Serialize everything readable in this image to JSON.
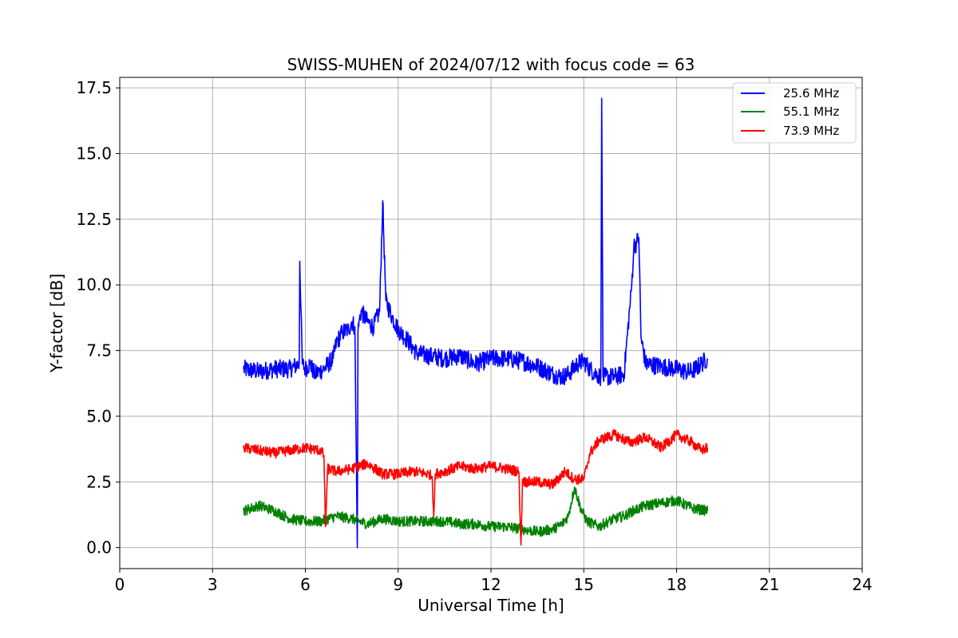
{
  "chart_data": {
    "type": "line",
    "title": "SWISS-MUHEN of 2024/07/12 with focus code = 63",
    "xlabel": "Universal Time [h]",
    "ylabel": "Y-factor [dB]",
    "xlim": [
      0,
      24
    ],
    "ylim": [
      -0.8,
      17.9
    ],
    "xticks": [
      0,
      3,
      6,
      9,
      12,
      15,
      18,
      21,
      24
    ],
    "yticks": [
      0.0,
      2.5,
      5.0,
      7.5,
      10.0,
      12.5,
      15.0,
      17.5
    ],
    "ytick_labels": [
      "0.0",
      "2.5",
      "5.0",
      "7.5",
      "10.0",
      "12.5",
      "15.0",
      "17.5"
    ],
    "grid": true,
    "legend_position": "top-right",
    "series": [
      {
        "name": "25.6 MHz",
        "color": "#0000ff",
        "x": [
          4.0,
          4.5,
          5.0,
          5.5,
          5.8,
          5.82,
          5.9,
          6.0,
          6.15,
          6.3,
          6.6,
          6.9,
          7.0,
          7.2,
          7.4,
          7.5,
          7.6,
          7.68,
          7.7,
          7.75,
          7.8,
          8.0,
          8.2,
          8.4,
          8.5,
          8.6,
          8.8,
          9.0,
          9.3,
          9.6,
          10.0,
          10.5,
          11.0,
          11.5,
          12.0,
          12.5,
          13.0,
          13.5,
          14.0,
          14.3,
          14.5,
          14.8,
          15.0,
          15.2,
          15.4,
          15.55,
          15.58,
          15.62,
          15.7,
          16.0,
          16.3,
          16.55,
          16.62,
          16.7,
          16.78,
          16.85,
          17.0,
          17.5,
          18.0,
          18.3,
          18.5,
          18.8,
          19.0
        ],
        "y": [
          6.8,
          6.7,
          6.8,
          6.8,
          7.0,
          10.9,
          7.0,
          6.8,
          7.0,
          6.6,
          6.8,
          7.2,
          7.8,
          8.2,
          8.3,
          8.6,
          8.4,
          0.0,
          8.2,
          8.7,
          9.0,
          8.6,
          8.4,
          9.0,
          13.2,
          9.4,
          8.8,
          8.3,
          7.9,
          7.4,
          7.3,
          7.2,
          7.3,
          7.0,
          7.2,
          7.2,
          7.1,
          6.9,
          6.6,
          6.5,
          6.6,
          7.0,
          7.1,
          6.8,
          6.6,
          6.5,
          17.1,
          6.5,
          6.5,
          6.5,
          6.6,
          10.0,
          11.5,
          11.6,
          11.8,
          8.0,
          7.0,
          6.9,
          6.8,
          6.7,
          6.7,
          7.0,
          7.2
        ]
      },
      {
        "name": "55.1 MHz",
        "color": "#008000",
        "x": [
          4.0,
          4.5,
          5.0,
          5.5,
          6.0,
          6.5,
          7.0,
          7.5,
          8.0,
          8.5,
          9.0,
          9.5,
          10.0,
          10.5,
          11.0,
          11.5,
          12.0,
          12.5,
          13.0,
          13.5,
          14.0,
          14.3,
          14.5,
          14.7,
          14.9,
          15.1,
          15.3,
          15.5,
          15.8,
          16.0,
          16.3,
          16.6,
          17.0,
          17.5,
          18.0,
          18.5,
          19.0
        ],
        "y": [
          1.4,
          1.6,
          1.4,
          1.1,
          1.0,
          1.0,
          1.2,
          1.1,
          0.9,
          1.1,
          1.0,
          1.0,
          1.0,
          1.0,
          0.9,
          0.9,
          0.8,
          0.8,
          0.7,
          0.6,
          0.7,
          0.9,
          1.2,
          2.3,
          1.5,
          1.0,
          0.9,
          0.8,
          1.0,
          1.1,
          1.2,
          1.4,
          1.6,
          1.7,
          1.8,
          1.5,
          1.4
        ]
      },
      {
        "name": "73.9 MHz",
        "color": "#ff0000",
        "x": [
          4.0,
          4.5,
          5.0,
          5.5,
          6.0,
          6.5,
          6.6,
          6.65,
          6.72,
          7.0,
          7.5,
          8.0,
          8.5,
          9.0,
          9.5,
          10.0,
          10.1,
          10.15,
          10.2,
          10.5,
          11.0,
          11.5,
          12.0,
          12.5,
          12.9,
          12.97,
          13.02,
          13.1,
          13.5,
          14.0,
          14.4,
          14.7,
          15.0,
          15.2,
          15.5,
          16.0,
          16.5,
          17.0,
          17.5,
          18.0,
          18.5,
          18.8,
          19.0
        ],
        "y": [
          3.8,
          3.7,
          3.6,
          3.7,
          3.8,
          3.7,
          3.5,
          0.8,
          3.0,
          2.9,
          3.0,
          3.2,
          2.8,
          2.8,
          2.9,
          2.8,
          2.7,
          1.2,
          2.8,
          2.9,
          3.1,
          3.0,
          3.1,
          3.0,
          2.9,
          0.1,
          2.6,
          2.5,
          2.5,
          2.4,
          2.9,
          2.6,
          2.6,
          3.6,
          4.1,
          4.3,
          4.0,
          4.2,
          3.8,
          4.3,
          4.0,
          3.7,
          3.8
        ]
      }
    ]
  }
}
